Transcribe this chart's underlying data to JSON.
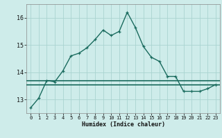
{
  "xlabel": "Humidex (Indice chaleur)",
  "ylabel": "",
  "bg_color": "#ceecea",
  "grid_color": "#aad4d0",
  "line_color": "#1a6b5e",
  "x_values": [
    0,
    1,
    2,
    3,
    4,
    5,
    6,
    7,
    8,
    9,
    10,
    11,
    12,
    13,
    14,
    15,
    16,
    17,
    18,
    19,
    20,
    21,
    22,
    23
  ],
  "y_curve1": [
    12.7,
    13.05,
    13.7,
    13.65,
    14.05,
    14.6,
    14.7,
    14.9,
    15.2,
    15.55,
    15.35,
    15.5,
    16.2,
    15.65,
    14.95,
    14.55,
    14.4,
    13.85,
    13.85,
    13.3,
    13.3,
    13.3,
    13.4,
    13.55
  ],
  "y_flat1": 13.7,
  "y_flat2": 13.55,
  "ylim": [
    12.5,
    16.5
  ],
  "xlim": [
    -0.5,
    23.5
  ],
  "yticks": [
    13,
    14,
    15,
    16
  ],
  "xticks": [
    0,
    1,
    2,
    3,
    4,
    5,
    6,
    7,
    8,
    9,
    10,
    11,
    12,
    13,
    14,
    15,
    16,
    17,
    18,
    19,
    20,
    21,
    22,
    23
  ]
}
